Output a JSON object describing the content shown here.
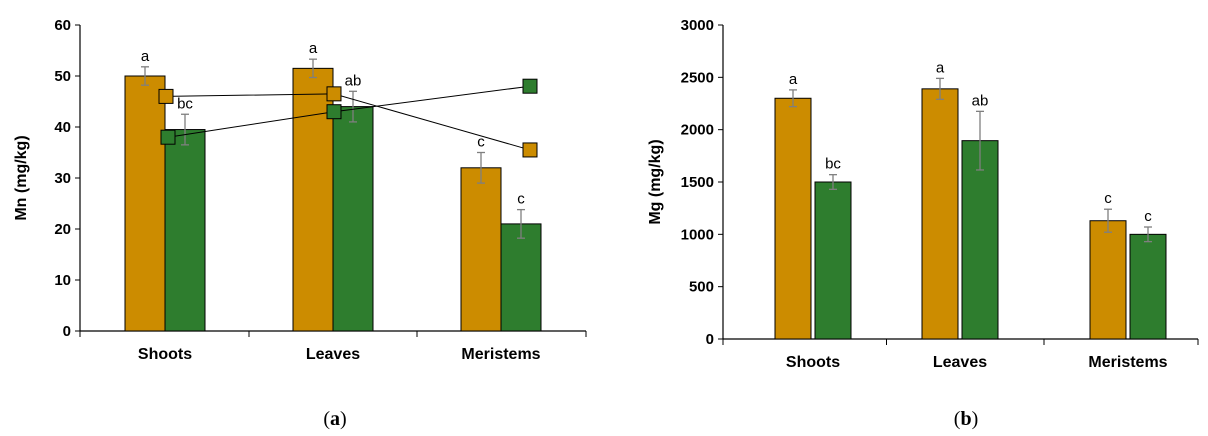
{
  "colors": {
    "gold": "#cc8c00",
    "green": "#2e7d2e",
    "axis": "#000000",
    "error": "#7f7f7f",
    "line": "#000000"
  },
  "chart_data": [
    {
      "type": "bar",
      "panel_label": "(a)",
      "ylabel": "Mn (mg/kg)",
      "ylim": [
        0,
        60
      ],
      "yticks": [
        0,
        10,
        20,
        30,
        40,
        50,
        60
      ],
      "categories": [
        "Shoots",
        "Leaves",
        "Meristems"
      ],
      "series": [
        {
          "color_key": "gold",
          "values": [
            50,
            51.5,
            32
          ],
          "errors": [
            1.8,
            1.8,
            3.0
          ],
          "labels": [
            "a",
            "a",
            "c"
          ]
        },
        {
          "color_key": "green",
          "values": [
            39.5,
            44,
            21
          ],
          "errors": [
            3.0,
            3.0,
            2.8
          ],
          "labels": [
            "bc",
            "ab",
            "c"
          ]
        }
      ],
      "overlay_lines": [
        {
          "color_key": "gold",
          "values": [
            46,
            46.5,
            35.5
          ]
        },
        {
          "color_key": "green",
          "values": [
            38,
            43,
            48
          ]
        }
      ]
    },
    {
      "type": "bar",
      "panel_label": "(b)",
      "ylabel": "Mg (mg/kg)",
      "ylim": [
        0,
        3000
      ],
      "yticks": [
        0,
        500,
        1000,
        1500,
        2000,
        2500,
        3000
      ],
      "categories": [
        "Shoots",
        "Leaves",
        "Meristems"
      ],
      "series": [
        {
          "color_key": "gold",
          "values": [
            2300,
            2390,
            1130
          ],
          "errors": [
            80,
            100,
            110
          ],
          "labels": [
            "a",
            "a",
            "c"
          ]
        },
        {
          "color_key": "green",
          "values": [
            1500,
            1895,
            1000
          ],
          "errors": [
            70,
            280,
            70
          ],
          "labels": [
            "bc",
            "ab",
            "c"
          ]
        }
      ]
    }
  ]
}
